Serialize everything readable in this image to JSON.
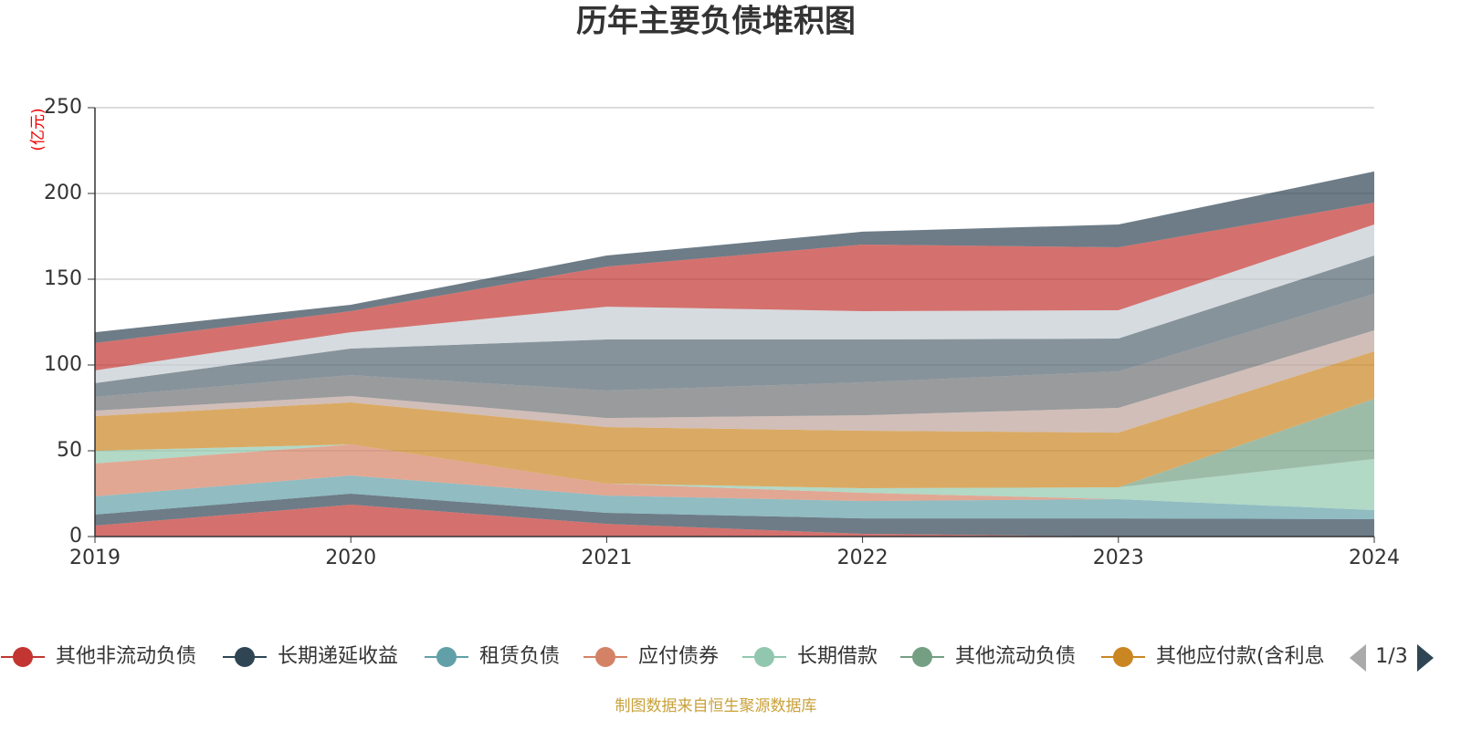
{
  "chart_data": {
    "type": "stacked_area",
    "title": "历年主要负债堆积图",
    "y_label": "(亿元)",
    "categories": [
      "2019",
      "2020",
      "2021",
      "2022",
      "2023",
      "2024"
    ],
    "ylim": [
      0,
      250
    ],
    "yticks": [
      0,
      50,
      100,
      150,
      200,
      250
    ],
    "grid": true,
    "series": [
      {
        "name": "其他非流动负债",
        "color": "#c23531",
        "values": [
          6.4,
          18.6,
          7.4,
          1.6,
          0,
          0
        ]
      },
      {
        "name": "长期递延收益",
        "color": "#2f4554",
        "values": [
          6.4,
          6.4,
          6.4,
          9,
          10.6,
          10.1
        ]
      },
      {
        "name": "租赁负债",
        "color": "#61a0a8",
        "values": [
          10.6,
          10.6,
          10.1,
          10.1,
          11.2,
          5.3
        ]
      },
      {
        "name": "应付债券",
        "color": "#d48265",
        "values": [
          19.2,
          18.1,
          7,
          4.8,
          0,
          0
        ]
      },
      {
        "name": "长期借款",
        "color": "#91c7ae",
        "values": [
          7.4,
          0,
          0,
          2.7,
          6.9,
          29.8
        ]
      },
      {
        "name": "其他流动负债",
        "color": "#749f83",
        "values": [
          0,
          0,
          0,
          0,
          0,
          35.1
        ]
      },
      {
        "name": "其他应付款(含利息",
        "color": "#ca8622",
        "values": [
          20.2,
          24.5,
          32.9,
          33.5,
          31.9,
          27.7
        ]
      },
      {
        "color": "#bda29a",
        "values": [
          3.2,
          3.7,
          5.3,
          9,
          14.4,
          12.2
        ]
      },
      {
        "color": "#6e7074",
        "values": [
          8,
          12.2,
          16,
          19.2,
          21.3,
          21.3
        ]
      },
      {
        "color": "#546570",
        "values": [
          8,
          15.5,
          29.8,
          25,
          19.1,
          22.3
        ]
      },
      {
        "color": "#c4ccd3",
        "values": [
          7.4,
          9.5,
          19.1,
          16.5,
          16.5,
          18.1
        ]
      },
      {
        "color": "#c23531",
        "values": [
          16,
          12.3,
          23.4,
          38.8,
          36.7,
          12.8
        ]
      },
      {
        "color": "#2f4554",
        "values": [
          6.3,
          3.7,
          6.4,
          7.5,
          13.3,
          18.1
        ]
      }
    ],
    "legend_page": "1/3",
    "source": "制图数据来自恒生聚源数据库"
  }
}
